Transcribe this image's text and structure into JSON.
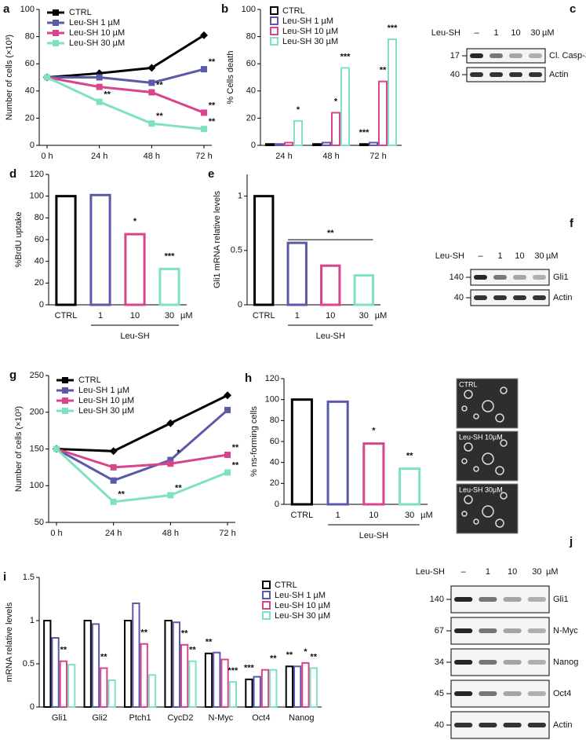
{
  "chart_data": [
    {
      "panel": "a",
      "type": "line",
      "y_title": "Number of cells (×10³)",
      "categories": [
        "0 h",
        "24 h",
        "48 h",
        "72 h"
      ],
      "ylim": [
        0,
        100
      ],
      "yticks": [
        0,
        20,
        40,
        60,
        80,
        100
      ],
      "series": [
        {
          "name": "CTRL",
          "color": "#000000",
          "values": [
            50,
            53,
            57,
            81
          ]
        },
        {
          "name": "Leu-SH 1 µM",
          "color": "#5a5aa8",
          "values": [
            50,
            50,
            46,
            56
          ]
        },
        {
          "name": "Leu-SH 10 µM",
          "color": "#d8458c",
          "values": [
            50,
            43,
            39,
            24
          ]
        },
        {
          "name": "Leu-SH 30 µM",
          "color": "#80e0c4",
          "values": [
            50,
            32,
            16,
            12
          ]
        }
      ],
      "annotations": [
        {
          "text": "**",
          "series": 3,
          "index": 1
        },
        {
          "text": "**",
          "series": 2,
          "index": 2
        },
        {
          "text": "**",
          "series": 3,
          "index": 2
        },
        {
          "text": "**",
          "series": 1,
          "index": 3
        },
        {
          "text": "**",
          "series": 2,
          "index": 3
        },
        {
          "text": "**",
          "series": 3,
          "index": 3
        }
      ]
    },
    {
      "panel": "b",
      "type": "groupbar",
      "y_title": "% Cells death",
      "categories": [
        "24 h",
        "48 h",
        "72 h"
      ],
      "ylim": [
        0,
        100
      ],
      "yticks": [
        0,
        20,
        40,
        60,
        80,
        100
      ],
      "series": [
        {
          "name": "CTRL",
          "color": "#000000",
          "values": [
            1,
            1,
            1
          ]
        },
        {
          "name": "Leu-SH 1 µM",
          "color": "#5a5aa8",
          "values": [
            1,
            2,
            2
          ]
        },
        {
          "name": "Leu-SH 10 µM",
          "color": "#d8458c",
          "values": [
            2,
            24,
            47
          ]
        },
        {
          "name": "Leu-SH 30 µM",
          "color": "#80e0c4",
          "values": [
            18,
            57,
            78
          ]
        }
      ],
      "annotations": [
        {
          "text": "*",
          "series": 3,
          "index": 0
        },
        {
          "text": "*",
          "series": 2,
          "index": 1
        },
        {
          "text": "***",
          "series": 3,
          "index": 1
        },
        {
          "text": "***",
          "series": 0,
          "index": 2
        },
        {
          "text": "**",
          "series": 2,
          "index": 2
        },
        {
          "text": "***",
          "series": 3,
          "index": 2
        }
      ]
    },
    {
      "panel": "d",
      "type": "bar",
      "y_title": "%BrdU uptake",
      "categories": [
        "CTRL",
        "1",
        "10",
        "30"
      ],
      "unit": "µM",
      "group_label": "Leu-SH",
      "ylim": [
        0,
        120
      ],
      "yticks": [
        0,
        20,
        40,
        60,
        80,
        100,
        120
      ],
      "values": [
        100,
        101,
        65,
        33
      ],
      "colors": [
        "#000000",
        "#5a5aa8",
        "#d8458c",
        "#80e0c4"
      ],
      "annotations": [
        {
          "text": "*",
          "index": 2
        },
        {
          "text": "***",
          "index": 3
        }
      ]
    },
    {
      "panel": "e",
      "type": "bar",
      "y_title": "Gli1 mRNA relative levels",
      "categories": [
        "CTRL",
        "1",
        "10",
        "30"
      ],
      "unit": "µM",
      "group_label": "Leu-SH",
      "ylim": [
        0,
        1.2
      ],
      "yticks": [
        0,
        0.5,
        1
      ],
      "values": [
        1,
        0.57,
        0.36,
        0.27
      ],
      "colors": [
        "#000000",
        "#5a5aa8",
        "#d8458c",
        "#80e0c4"
      ],
      "annotations": [
        {
          "text": "**",
          "span": [
            0,
            3
          ]
        }
      ]
    },
    {
      "panel": "g",
      "type": "line",
      "y_title": "Number of cells (×10³)",
      "categories": [
        "0 h",
        "24 h",
        "48 h",
        "72 h"
      ],
      "ylim": [
        50,
        250
      ],
      "yticks": [
        50,
        100,
        150,
        200,
        250
      ],
      "series": [
        {
          "name": "CTRL",
          "color": "#000000",
          "values": [
            150,
            147,
            185,
            223
          ]
        },
        {
          "name": "Leu-SH 1 µM",
          "color": "#5a5aa8",
          "values": [
            150,
            107,
            135,
            203
          ]
        },
        {
          "name": "Leu-SH 10 µM",
          "color": "#d8458c",
          "values": [
            150,
            125,
            130,
            142
          ]
        },
        {
          "name": "Leu-SH 30 µM",
          "color": "#80e0c4",
          "values": [
            150,
            78,
            87,
            118
          ]
        }
      ],
      "annotations": [
        {
          "text": "**",
          "series": 3,
          "index": 1
        },
        {
          "text": "*",
          "series": 1,
          "index": 2
        },
        {
          "text": "**",
          "series": 3,
          "index": 2
        },
        {
          "text": "**",
          "series": 2,
          "index": 3
        },
        {
          "text": "**",
          "series": 3,
          "index": 3
        }
      ]
    },
    {
      "panel": "h",
      "type": "bar",
      "y_title": "% ns-forming cells",
      "categories": [
        "CTRL",
        "1",
        "10",
        "30"
      ],
      "unit": "µM",
      "group_label": "Leu-SH",
      "ylim": [
        0,
        120
      ],
      "yticks": [
        0,
        20,
        40,
        60,
        80,
        100,
        120
      ],
      "values": [
        100,
        98,
        58,
        34
      ],
      "colors": [
        "#000000",
        "#5a5aa8",
        "#d8458c",
        "#80e0c4"
      ],
      "annotations": [
        {
          "text": "*",
          "index": 2
        },
        {
          "text": "**",
          "index": 3
        }
      ],
      "image_labels": [
        "CTRL",
        "Leu-SH 10µM",
        "Leu-SH 30µM"
      ]
    },
    {
      "panel": "i",
      "type": "groupbar",
      "y_title": "mRNA relative levels",
      "categories": [
        "Gli1",
        "Gli2",
        "Ptch1",
        "CycD2",
        "N-Myc",
        "Oct4",
        "Nanog"
      ],
      "ylim": [
        0,
        1.5
      ],
      "yticks": [
        0,
        0.5,
        1,
        1.5
      ],
      "series": [
        {
          "name": "CTRL",
          "color": "#000000",
          "values": [
            1,
            1,
            1,
            1,
            0.62,
            0.32,
            0.47
          ]
        },
        {
          "name": "Leu-SH 1 µM",
          "color": "#5a5aa8",
          "values": [
            0.8,
            0.96,
            1.2,
            0.98,
            0.63,
            0.35,
            0.47
          ]
        },
        {
          "name": "Leu-SH 10 µM",
          "color": "#d8458c",
          "values": [
            0.53,
            0.45,
            0.73,
            0.72,
            0.55,
            0.43,
            0.51
          ]
        },
        {
          "name": "Leu-SH 30 µM",
          "color": "#80e0c4",
          "values": [
            0.49,
            0.31,
            0.37,
            0.53,
            0.29,
            0.43,
            0.45
          ]
        }
      ],
      "annotations": [
        {
          "text": "**",
          "series": 2,
          "index": 0
        },
        {
          "text": "**",
          "series": 2,
          "index": 1
        },
        {
          "text": "**",
          "series": 2,
          "index": 2
        },
        {
          "text": "**",
          "series": 2,
          "index": 3
        },
        {
          "text": "**",
          "series": 3,
          "index": 3
        },
        {
          "text": "**",
          "series": 0,
          "index": 4
        },
        {
          "text": "***",
          "series": 3,
          "index": 4
        },
        {
          "text": "***",
          "series": 0,
          "index": 5
        },
        {
          "text": "**",
          "series": 3,
          "index": 5
        },
        {
          "text": "**",
          "series": 0,
          "index": 6
        },
        {
          "text": "*",
          "series": 2,
          "index": 6
        },
        {
          "text": "**",
          "series": 3,
          "index": 6
        }
      ]
    }
  ],
  "blots": [
    {
      "panel": "c",
      "treatment": "Leu-SH",
      "lanes": [
        "–",
        "1",
        "10",
        "30"
      ],
      "unit": "µM",
      "rows": [
        {
          "marker": "17",
          "label": "Cl. Casp-3"
        },
        {
          "marker": "40",
          "label": "Actin"
        }
      ]
    },
    {
      "panel": "f",
      "treatment": "Leu-SH",
      "lanes": [
        "–",
        "1",
        "10",
        "30"
      ],
      "unit": "µM",
      "rows": [
        {
          "marker": "140",
          "label": "Gli1"
        },
        {
          "marker": "40",
          "label": "Actin"
        }
      ]
    },
    {
      "panel": "j",
      "treatment": "Leu-SH",
      "lanes": [
        "–",
        "1",
        "10",
        "30"
      ],
      "unit": "µM",
      "rows": [
        {
          "marker": "140",
          "label": "Gli1"
        },
        {
          "marker": "67",
          "label": "N-Myc"
        },
        {
          "marker": "34",
          "label": "Nanog"
        },
        {
          "marker": "45",
          "label": "Oct4"
        },
        {
          "marker": "40",
          "label": "Actin"
        }
      ]
    }
  ]
}
